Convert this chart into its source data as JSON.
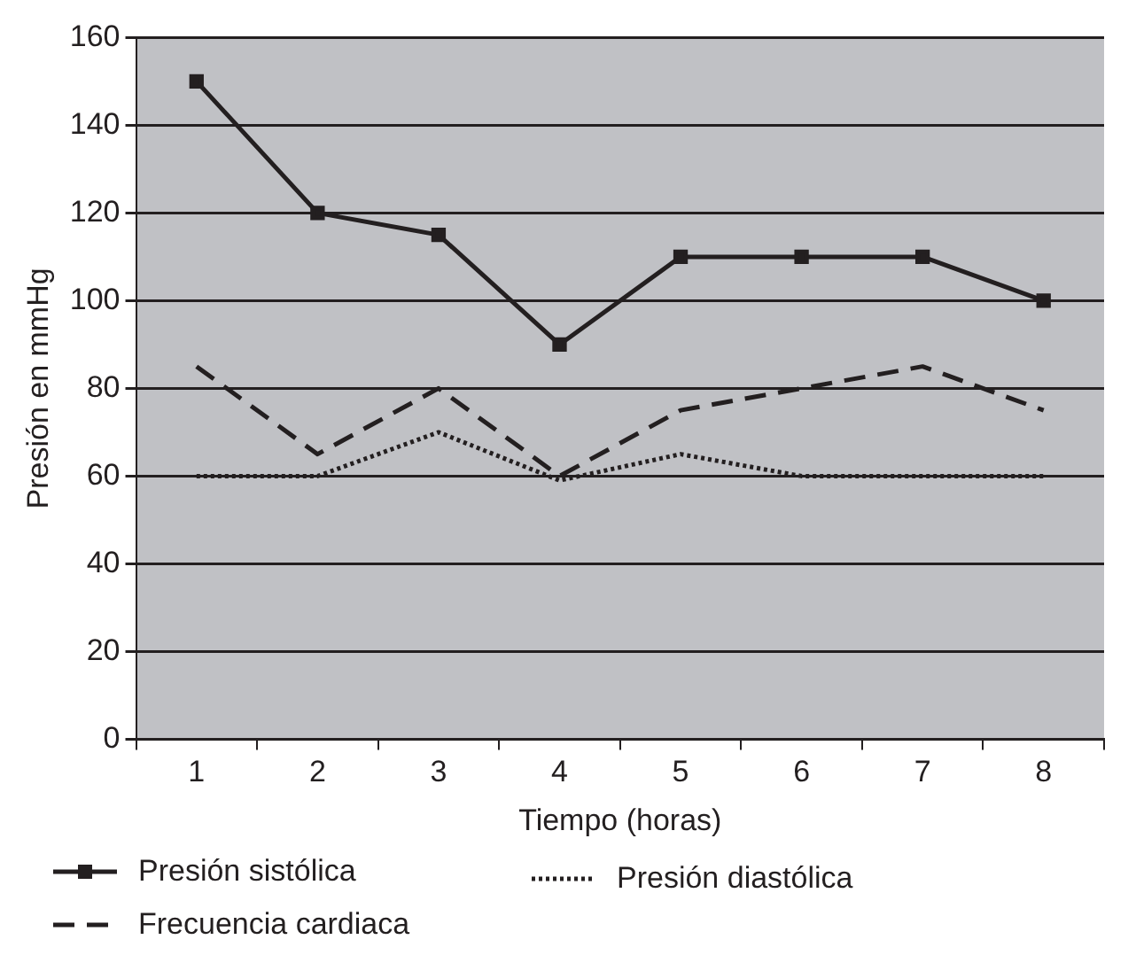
{
  "chart_data": {
    "type": "line",
    "xlabel": "Tiempo (horas)",
    "ylabel": "Presión en mmHg",
    "categories": [
      "1",
      "2",
      "3",
      "4",
      "5",
      "6",
      "7",
      "8"
    ],
    "series": [
      {
        "name": "Presión sistólica",
        "color": "#231f20",
        "values": [
          150,
          120,
          115,
          90,
          110,
          110,
          110,
          100
        ],
        "marker": "square",
        "line_style": "solid"
      },
      {
        "name": "Frecuencia cardiaca",
        "color": "#231f20",
        "values": [
          85,
          65,
          80,
          60,
          75,
          80,
          85,
          75
        ],
        "marker": "none",
        "line_style": "dashed"
      },
      {
        "name": "Presión diastólica",
        "color": "#231f20",
        "values": [
          60,
          60,
          70,
          59,
          65,
          60,
          60,
          60
        ],
        "marker": "none",
        "line_style": "dotted"
      }
    ],
    "ylim": [
      0,
      160
    ],
    "yticks": [
      0,
      20,
      40,
      60,
      80,
      100,
      120,
      140,
      160
    ],
    "grid": "y",
    "legend": "bottom"
  }
}
